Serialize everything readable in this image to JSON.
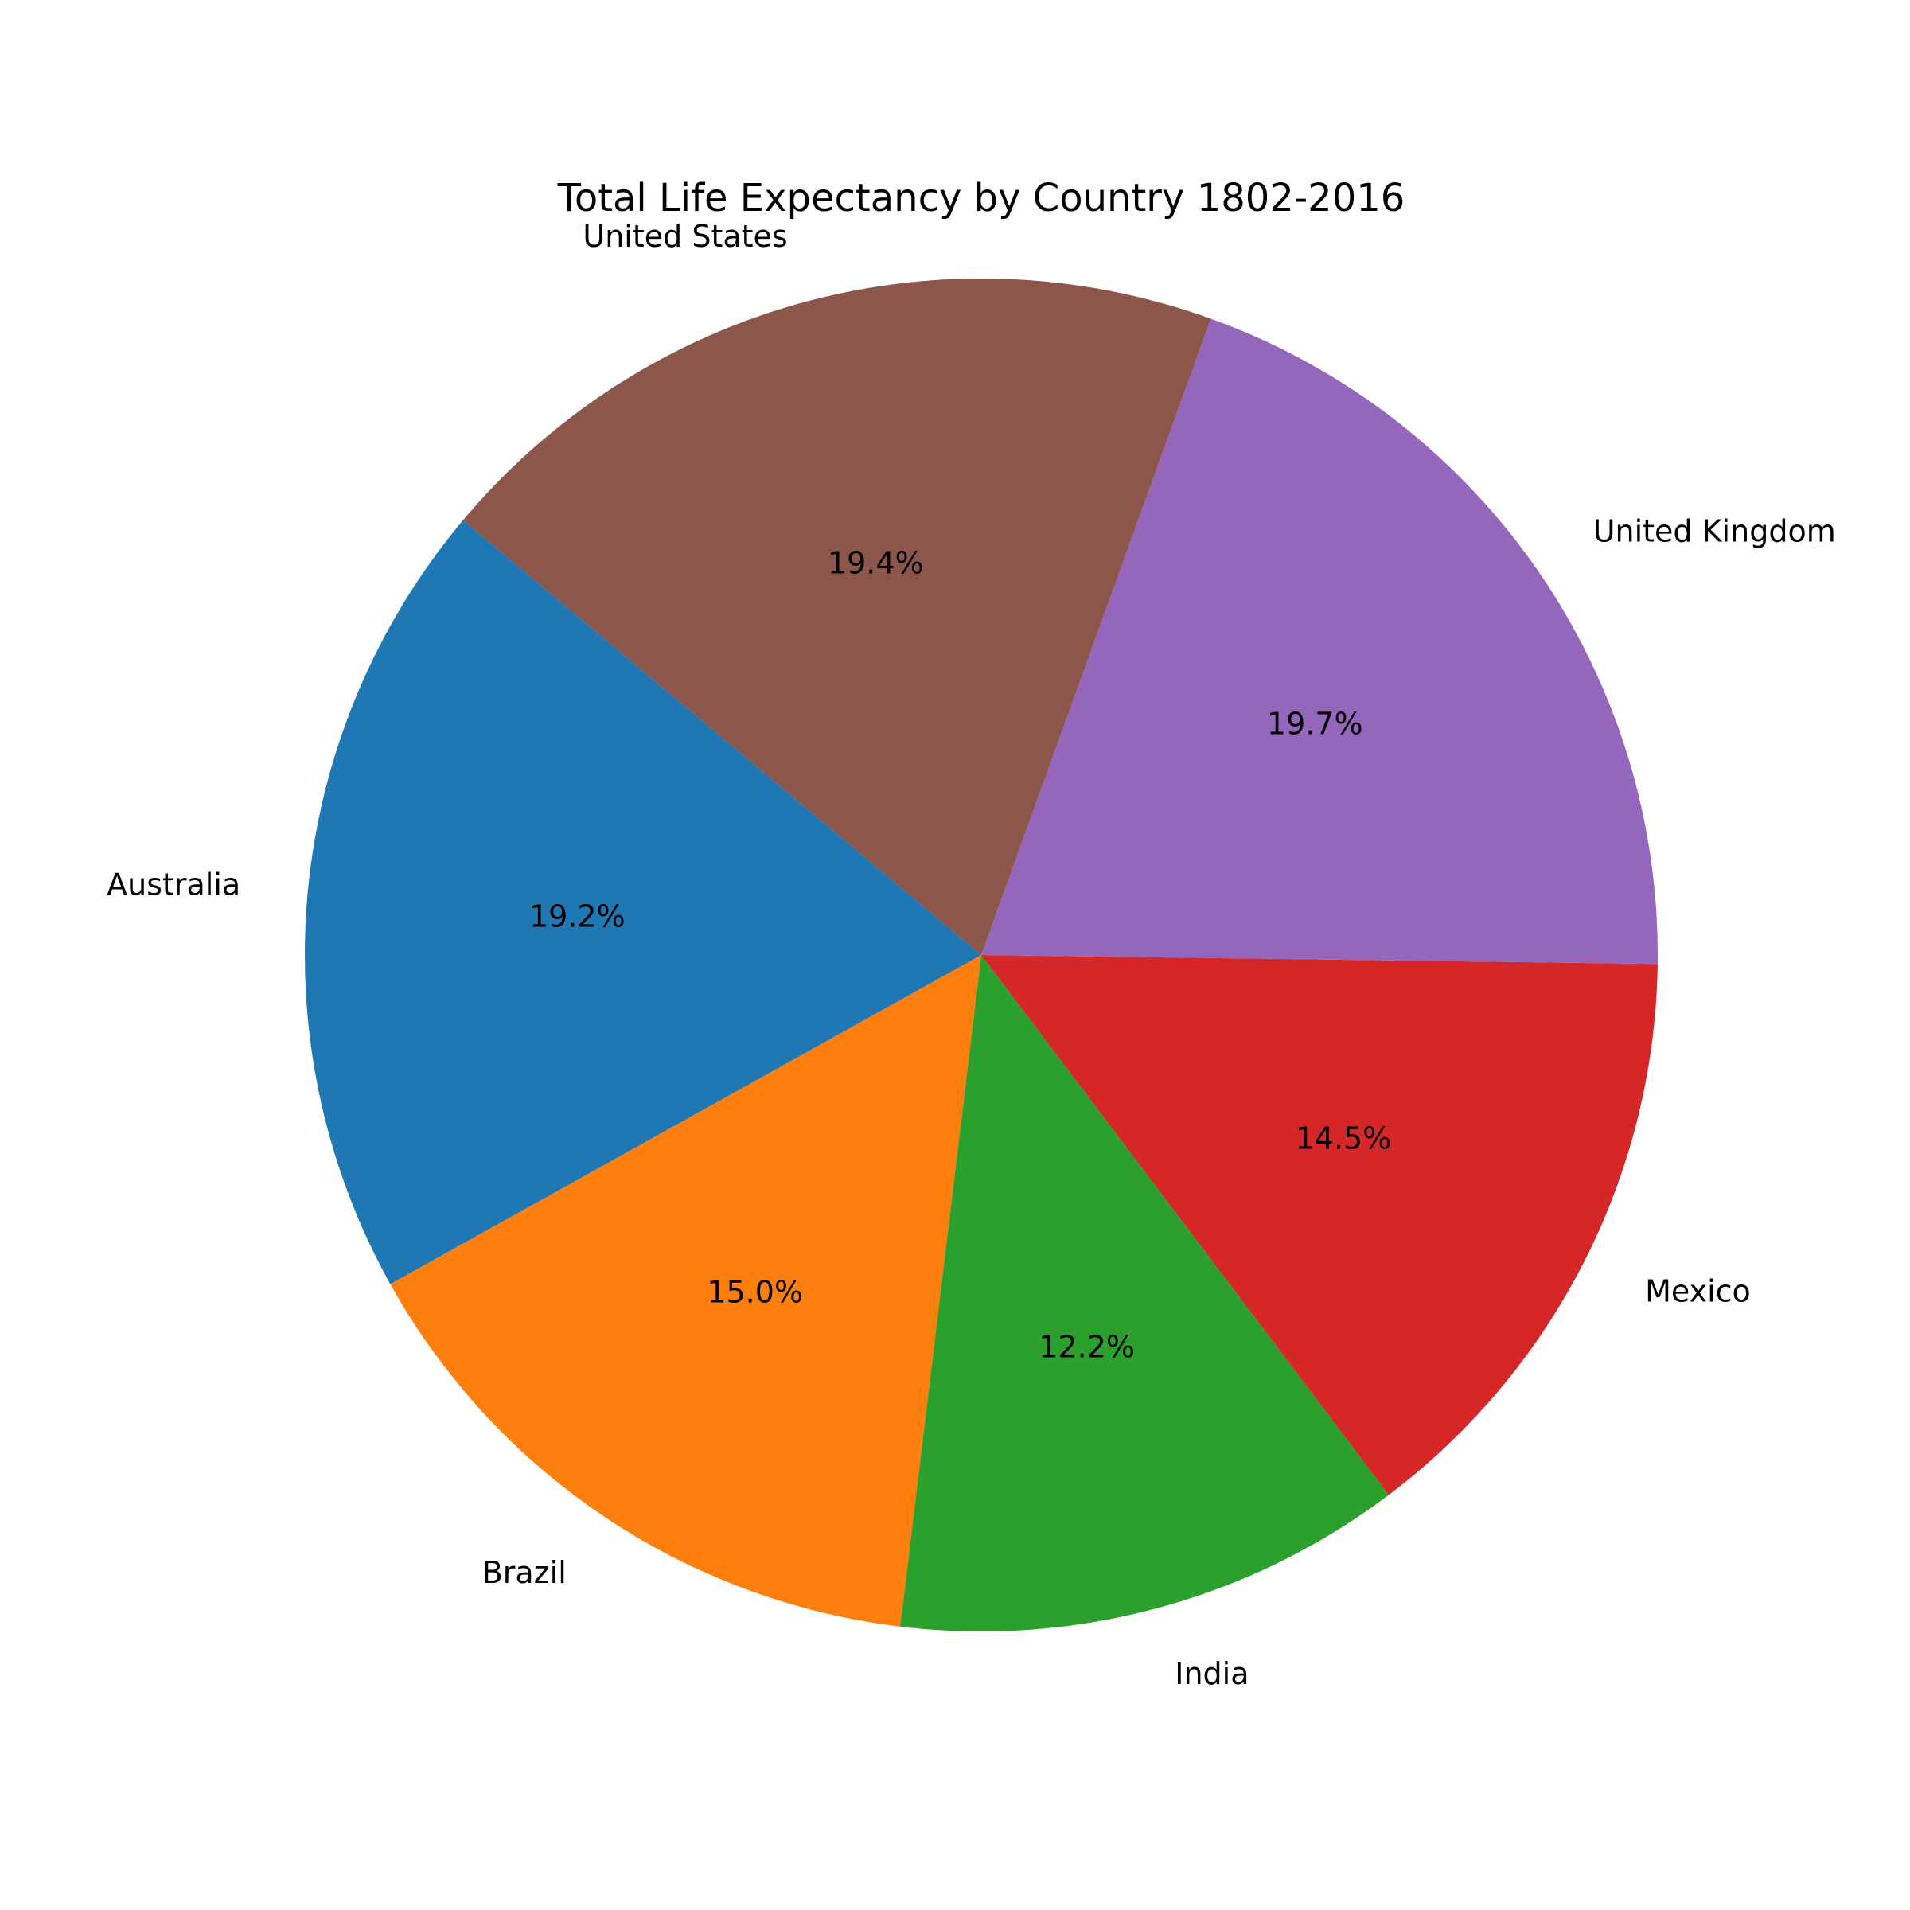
{
  "chart_data": {
    "type": "pie",
    "title": "Total Life Expectancy by Country 1802-2016",
    "start_angle_deg": 140,
    "direction": "counterclockwise",
    "slices": [
      {
        "label": "Australia",
        "percent_label": "19.2%",
        "value": 19.2,
        "color": "#1f77b4"
      },
      {
        "label": "Brazil",
        "percent_label": "15.0%",
        "value": 15.0,
        "color": "#ff7f0e"
      },
      {
        "label": "India",
        "percent_label": "12.2%",
        "value": 12.2,
        "color": "#2ca02c"
      },
      {
        "label": "Mexico",
        "percent_label": "14.5%",
        "value": 14.5,
        "color": "#d62728"
      },
      {
        "label": "United Kingdom",
        "percent_label": "19.7%",
        "value": 19.7,
        "color": "#9467bd"
      },
      {
        "label": "United States",
        "percent_label": "19.4%",
        "value": 19.4,
        "color": "#8c564b"
      }
    ]
  }
}
